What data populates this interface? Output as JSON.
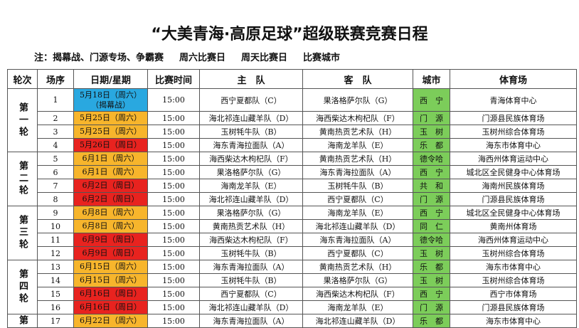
{
  "title": "“大美青海·高原足球”超级联赛竞赛日程",
  "legend": [
    "注：揭幕战、门源专场、争霸赛",
    "周六比赛日",
    "周天比赛日",
    "比赛城市"
  ],
  "table": {
    "headers": [
      "轮次",
      "场序",
      "日期/星期",
      "比赛时间",
      "主　队",
      "客　队",
      "城市",
      "体育场"
    ],
    "rounds": [
      {
        "label": "第一轮",
        "matches": [
          {
            "no": "1",
            "date": "5月18日（周六）",
            "note": "（揭幕战）",
            "date_bg": "#29a8e0",
            "time": "15:00",
            "home": "西宁夏都队（C）",
            "away": "果洛格萨尔队（G）",
            "city": "西　宁",
            "venue": "青海体育中心"
          },
          {
            "no": "2",
            "date": "5月25日（周六）",
            "date_bg": "#f7b52c",
            "time": "15:00",
            "home": "海北祁连山藏羊队（D）",
            "away": "海西柴达木枸杞队（F）",
            "city": "门　源",
            "venue": "门源县民族体育场"
          },
          {
            "no": "3",
            "date": "5月25日（周六）",
            "date_bg": "#f7b52c",
            "time": "15:00",
            "home": "玉树牦牛队（B）",
            "away": "黄南热贡艺术队（H）",
            "city": "玉　树",
            "venue": "玉树州综合体育场"
          },
          {
            "no": "4",
            "date": "5月26日（周日）",
            "date_bg": "#e8231f",
            "time": "15:00",
            "home": "海东青海拉面队（A）",
            "away": "海南龙羊队（E）",
            "city": "乐　都",
            "venue": "海东市体育中心"
          }
        ]
      },
      {
        "label": "第二轮",
        "matches": [
          {
            "no": "5",
            "date": "6月1日（周六）",
            "date_bg": "#f7b52c",
            "time": "15:00",
            "home": "海西柴达木枸杞队（F）",
            "away": "黄南热贡艺术队（H）",
            "city": "德令哈",
            "venue": "海西州体育运动中心"
          },
          {
            "no": "6",
            "date": "6月1日（周六）",
            "date_bg": "#f7b52c",
            "time": "15:00",
            "home": "果洛格萨尔队（G）",
            "away": "海东青海拉面队（A）",
            "city": "西　宁",
            "venue": "城北区全民健身中心体育场"
          },
          {
            "no": "7",
            "date": "6月2日（周日）",
            "date_bg": "#e8231f",
            "time": "15:00",
            "home": "海南龙羊队（E）",
            "away": "玉树牦牛队（B）",
            "city": "共　和",
            "venue": "海南州民族体育场"
          },
          {
            "no": "8",
            "date": "6月2日（周日）",
            "date_bg": "#e8231f",
            "time": "15:00",
            "home": "海北祁连山藏羊队（D）",
            "away": "西宁夏都队（C）",
            "city": "门　源",
            "venue": "门源县民族体育场"
          }
        ]
      },
      {
        "label": "第三轮",
        "matches": [
          {
            "no": "9",
            "date": "6月8日（周六）",
            "date_bg": "#f7b52c",
            "time": "15:00",
            "home": "果洛格萨尔队（G）",
            "away": "海南龙羊队（E）",
            "city": "西　宁",
            "venue": "城北区全民健身中心体育场"
          },
          {
            "no": "10",
            "date": "6月8日（周六）",
            "date_bg": "#f7b52c",
            "time": "15:00",
            "home": "黄南热贡艺术队（H）",
            "away": "海北祁连山藏羊队（D）",
            "city": "同　仁",
            "venue": "黄南州体育场"
          },
          {
            "no": "11",
            "date": "6月9日（周日）",
            "date_bg": "#e8231f",
            "time": "15:00",
            "home": "海西柴达木枸杞队（F）",
            "away": "海东青海拉面队（A）",
            "city": "德令哈",
            "venue": "海西州体育运动中心"
          },
          {
            "no": "12",
            "date": "6月9日（周日）",
            "date_bg": "#e8231f",
            "time": "15:00",
            "home": "玉树牦牛队（B）",
            "away": "西宁夏都队（C）",
            "city": "玉　树",
            "venue": "玉树州综合体育场"
          }
        ]
      },
      {
        "label": "第四轮",
        "matches": [
          {
            "no": "13",
            "date": "6月15日（周六）",
            "date_bg": "#f7b52c",
            "time": "15:00",
            "home": "海东青海拉面队（A）",
            "away": "黄南热贡艺术队（H）",
            "city": "乐　都",
            "venue": "海东市体育中心"
          },
          {
            "no": "14",
            "date": "6月15日（周六）",
            "date_bg": "#f7b52c",
            "time": "15:00",
            "home": "玉树牦牛队（B）",
            "away": "果洛格萨尔队（G）",
            "city": "玉　树",
            "venue": "玉树州综合体育场"
          },
          {
            "no": "15",
            "date": "6月16日（周日）",
            "date_bg": "#e8231f",
            "time": "15:00",
            "home": "西宁夏都队（C）",
            "away": "海西柴达木枸杞队（F）",
            "city": "西　宁",
            "venue": "西宁市体育场"
          },
          {
            "no": "16",
            "date": "6月16日（周日）",
            "date_bg": "#e8231f",
            "time": "15:00",
            "home": "海北祁连山藏羊队（D）",
            "away": "海南龙羊队（E）",
            "city": "门　源",
            "venue": "门源县民族体育场"
          }
        ]
      },
      {
        "label": "第",
        "matches": [
          {
            "no": "17",
            "date": "6月22日（周六）",
            "date_bg": "#f7b52c",
            "time": "15:00",
            "home": "海东青海拉面队（A）",
            "away": "海北祁连山藏羊队（D）",
            "city": "乐　都",
            "venue": "海东市体育中心"
          }
        ]
      }
    ]
  }
}
